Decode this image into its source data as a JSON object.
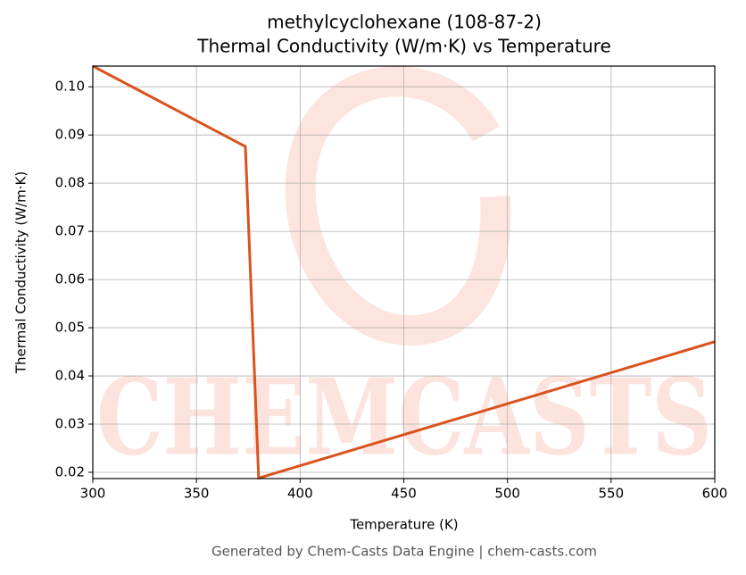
{
  "chart_data": {
    "type": "line",
    "title": "methylcyclohexane (108-87-2)",
    "subtitle": "Thermal Conductivity (W/m·K) vs Temperature",
    "x_label": "Temperature (K)",
    "y_label": "Thermal Conductivity (W/m·K)",
    "watermark": "CHEMCASTS",
    "footer": "Generated by Chem-Casts Data Engine | chem-casts.com",
    "x": [
      300,
      373.6,
      380,
      600
    ],
    "series": [
      {
        "color": "#d9531e",
        "values": [
          0.1043,
          0.0876,
          0.0188,
          0.0471
        ]
      }
    ],
    "xlim": [
      300,
      600
    ],
    "xticks": [
      300,
      350,
      400,
      450,
      500,
      550,
      600
    ],
    "ylim": [
      0.0187,
      0.1043
    ],
    "yticks": [
      0.02,
      0.03,
      0.04,
      0.05,
      0.06,
      0.07,
      0.08,
      0.09,
      {
        "value": 0.1,
        "label": "0.10"
      }
    ],
    "grid": true
  }
}
